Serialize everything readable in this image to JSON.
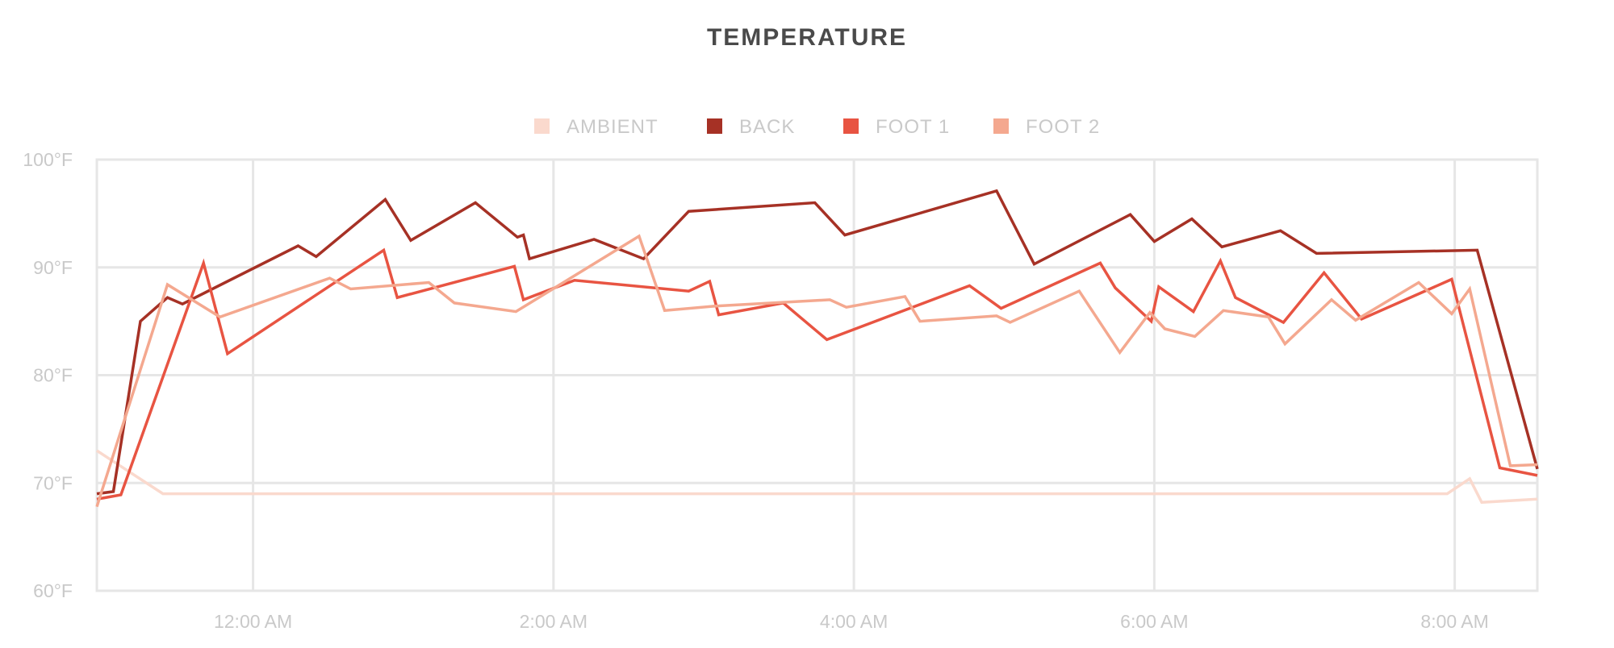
{
  "chart_data": {
    "type": "line",
    "title": "TEMPERATURE",
    "ylim": [
      60,
      100
    ],
    "y_ticks": [
      "100°F",
      "90°F",
      "80°F",
      "70°F",
      "60°F"
    ],
    "y_tick_values": [
      100,
      90,
      80,
      70,
      60
    ],
    "x_range_hours": [
      -1.04,
      8.55
    ],
    "x_ticks": [
      "12:00 AM",
      "2:00 AM",
      "4:00 AM",
      "6:00 AM",
      "8:00 AM"
    ],
    "x_tick_values": [
      0,
      2,
      4,
      6,
      8
    ],
    "grid": true,
    "legend_position": "top-center",
    "series": [
      {
        "name": "AMBIENT",
        "color": "#fad9cd",
        "points": [
          [
            -1.04,
            73
          ],
          [
            -0.6,
            69
          ],
          [
            7.95,
            69
          ],
          [
            8.1,
            70.4
          ],
          [
            8.18,
            68.2
          ],
          [
            8.55,
            68.5
          ]
        ]
      },
      {
        "name": "BACK",
        "color": "#a63125",
        "points": [
          [
            -1.04,
            69
          ],
          [
            -0.93,
            69.2
          ],
          [
            -0.75,
            85
          ],
          [
            -0.57,
            87.2
          ],
          [
            -0.47,
            86.6
          ],
          [
            0.3,
            92
          ],
          [
            0.42,
            91
          ],
          [
            0.88,
            96.3
          ],
          [
            1.05,
            92.5
          ],
          [
            1.48,
            96
          ],
          [
            1.76,
            92.8
          ],
          [
            1.8,
            93
          ],
          [
            1.84,
            90.8
          ],
          [
            2.27,
            92.6
          ],
          [
            2.6,
            90.8
          ],
          [
            2.9,
            95.2
          ],
          [
            3.74,
            96
          ],
          [
            3.94,
            93
          ],
          [
            4.95,
            97.1
          ],
          [
            5.2,
            90.3
          ],
          [
            5.84,
            94.9
          ],
          [
            6.0,
            92.4
          ],
          [
            6.25,
            94.5
          ],
          [
            6.45,
            91.9
          ],
          [
            6.84,
            93.4
          ],
          [
            7.08,
            91.3
          ],
          [
            8.15,
            91.6
          ],
          [
            8.55,
            71.3
          ]
        ]
      },
      {
        "name": "FOOT 1",
        "color": "#e85442",
        "points": [
          [
            -1.04,
            68.5
          ],
          [
            -0.88,
            68.9
          ],
          [
            -0.33,
            90.4
          ],
          [
            -0.17,
            82
          ],
          [
            0.87,
            91.6
          ],
          [
            0.96,
            87.2
          ],
          [
            1.74,
            90.1
          ],
          [
            1.8,
            87
          ],
          [
            2.14,
            88.8
          ],
          [
            2.9,
            87.8
          ],
          [
            3.04,
            88.7
          ],
          [
            3.1,
            85.6
          ],
          [
            3.53,
            86.7
          ],
          [
            3.82,
            83.3
          ],
          [
            4.77,
            88.3
          ],
          [
            4.98,
            86.2
          ],
          [
            5.64,
            90.4
          ],
          [
            5.74,
            88.1
          ],
          [
            5.98,
            85
          ],
          [
            6.03,
            88.2
          ],
          [
            6.26,
            85.9
          ],
          [
            6.44,
            90.6
          ],
          [
            6.54,
            87.2
          ],
          [
            6.86,
            84.9
          ],
          [
            7.13,
            89.5
          ],
          [
            7.38,
            85.2
          ],
          [
            7.98,
            88.9
          ],
          [
            8.3,
            71.4
          ],
          [
            8.55,
            70.7
          ]
        ]
      },
      {
        "name": "FOOT 2",
        "color": "#f4a88f",
        "points": [
          [
            -1.04,
            67.8
          ],
          [
            -0.57,
            88.4
          ],
          [
            -0.22,
            85.4
          ],
          [
            0.51,
            89
          ],
          [
            0.65,
            88
          ],
          [
            1.17,
            88.6
          ],
          [
            1.34,
            86.7
          ],
          [
            1.75,
            85.9
          ],
          [
            2.57,
            92.9
          ],
          [
            2.74,
            86
          ],
          [
            3.07,
            86.4
          ],
          [
            3.84,
            87
          ],
          [
            3.95,
            86.3
          ],
          [
            4.34,
            87.3
          ],
          [
            4.44,
            85
          ],
          [
            4.95,
            85.5
          ],
          [
            5.04,
            84.9
          ],
          [
            5.5,
            87.8
          ],
          [
            5.77,
            82.1
          ],
          [
            5.97,
            85.8
          ],
          [
            6.07,
            84.3
          ],
          [
            6.27,
            83.6
          ],
          [
            6.46,
            86
          ],
          [
            6.76,
            85.4
          ],
          [
            6.87,
            82.9
          ],
          [
            7.18,
            87
          ],
          [
            7.34,
            85.1
          ],
          [
            7.76,
            88.6
          ],
          [
            7.98,
            85.7
          ],
          [
            8.1,
            88
          ],
          [
            8.37,
            71.6
          ],
          [
            8.55,
            71.7
          ]
        ]
      }
    ]
  }
}
